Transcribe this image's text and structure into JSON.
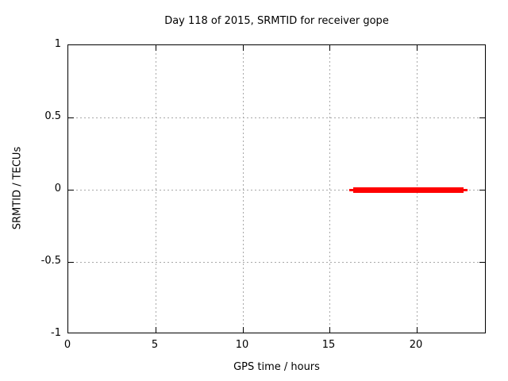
{
  "window": {
    "background": "#ffffff"
  },
  "chart_data": {
    "type": "line",
    "title": "Day 118 of 2015, SRMTID for receiver gope",
    "xlabel": "GPS time / hours",
    "ylabel": "SRMTID / TECUs",
    "xlim": [
      0,
      24
    ],
    "ylim": [
      -1,
      1
    ],
    "xticks": [
      0,
      5,
      10,
      15,
      20
    ],
    "yticks": [
      1,
      0.5,
      0,
      -0.5,
      -1
    ],
    "grid": true,
    "grid_style": "dotted",
    "legend": "none",
    "series": [
      {
        "name": "SRMTID",
        "color": "#ff0000",
        "description": "flat horizontal segment at SRMTID = 0 TECUs",
        "segments": [
          {
            "x1": 16.1,
            "x2": 22.9,
            "y": 0,
            "weight": "thin"
          },
          {
            "x1": 16.35,
            "x2": 22.7,
            "y": 0,
            "weight": "thick"
          }
        ]
      }
    ],
    "colors": {
      "line": "#ff0000",
      "grid": "#a8a8a8",
      "border": "#000000",
      "text": "#000000",
      "background": "#ffffff"
    }
  }
}
